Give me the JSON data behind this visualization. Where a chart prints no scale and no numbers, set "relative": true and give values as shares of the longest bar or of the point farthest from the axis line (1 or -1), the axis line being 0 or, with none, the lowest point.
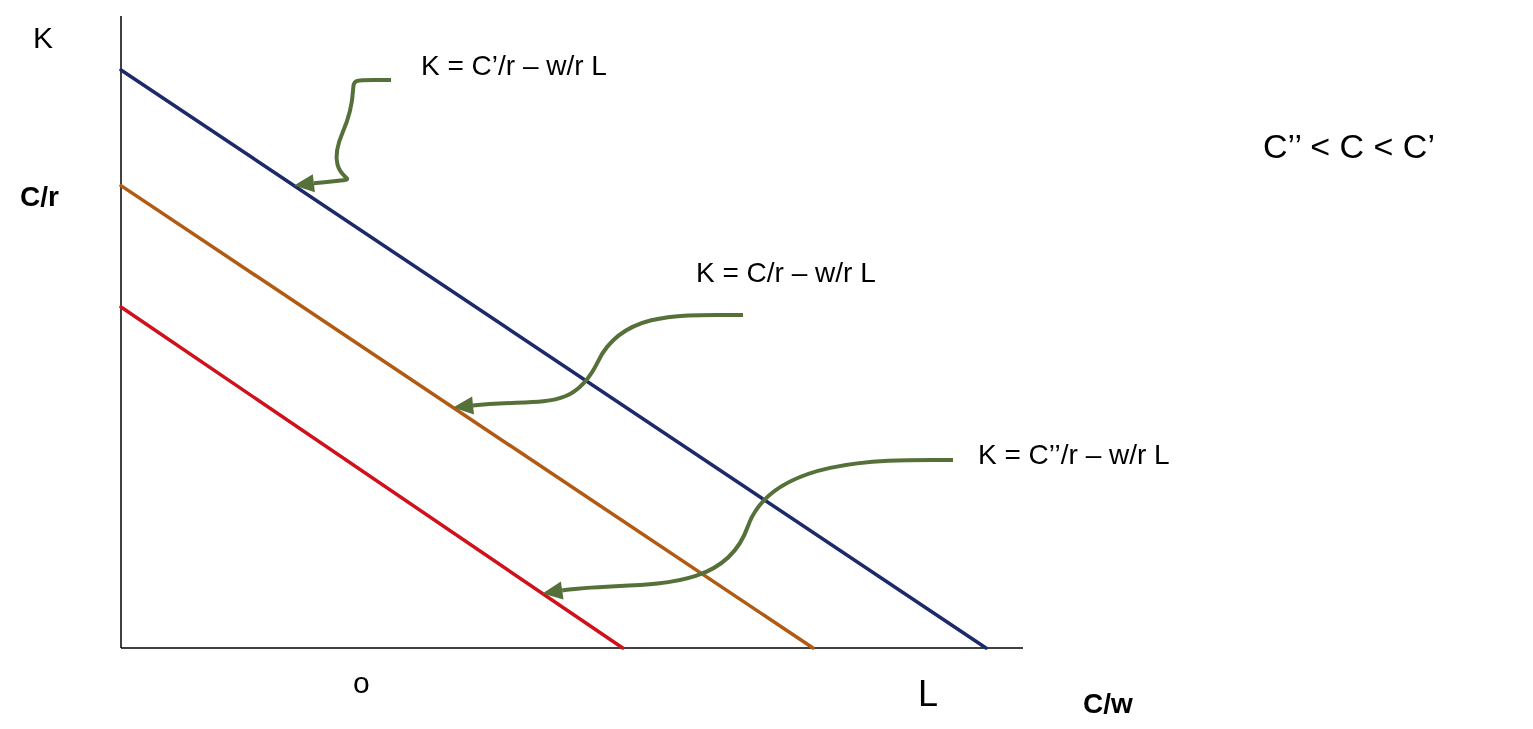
{
  "chart_data": {
    "type": "line",
    "relative": true,
    "xlabel": "L",
    "ylabel": "K",
    "categories": [
      null,
      null,
      null,
      null,
      null,
      null,
      null,
      null,
      null,
      null,
      null,
      null,
      null,
      null,
      null,
      null,
      null,
      null,
      null,
      null,
      null,
      null,
      null,
      null,
      null,
      null,
      null,
      null,
      null,
      null,
      null,
      null,
      null,
      null,
      null,
      null,
      null,
      null,
      null,
      null,
      null,
      null,
      null,
      null,
      null,
      null,
      null,
      null,
      null,
      null,
      null
    ],
    "series": [
      {
        "color": "#1c2a6b",
        "values": [
          1,
          null,
          null,
          null,
          null,
          null,
          null,
          null,
          null,
          null,
          null,
          null,
          null,
          null,
          null,
          null,
          null,
          null,
          null,
          null,
          null,
          null,
          null,
          null,
          null,
          null,
          null,
          null,
          null,
          null,
          null,
          null,
          null,
          null,
          null,
          null,
          null,
          null,
          null,
          null,
          null,
          null,
          null,
          null,
          null,
          null,
          null,
          null,
          null,
          null,
          0
        ]
      },
      {
        "color": "#b35a12",
        "values": [
          0.8,
          null,
          null,
          null,
          null,
          null,
          null,
          null,
          null,
          null,
          null,
          null,
          null,
          null,
          null,
          null,
          null,
          null,
          null,
          null,
          null,
          null,
          null,
          null,
          null,
          null,
          null,
          null,
          null,
          null,
          null,
          null,
          null,
          null,
          null,
          null,
          null,
          null,
          null,
          null,
          0,
          null,
          null,
          null,
          null,
          null,
          null,
          null,
          null,
          null,
          null
        ]
      },
      {
        "color": "#d0111b",
        "values": [
          0.59,
          null,
          null,
          null,
          null,
          null,
          null,
          null,
          null,
          null,
          null,
          null,
          null,
          null,
          null,
          null,
          null,
          null,
          null,
          null,
          null,
          null,
          null,
          null,
          null,
          null,
          null,
          null,
          null,
          0,
          null,
          null,
          null,
          null,
          null,
          null,
          null,
          null,
          null,
          null,
          null,
          null,
          null,
          null,
          null,
          null,
          null,
          null,
          null,
          null,
          null
        ]
      }
    ],
    "annotations": [
      "K = C’/r – w/r L",
      "K = C/r – w/r L",
      "K = C’’/r – w/r L",
      "C’’ < C < C’",
      "C/r",
      "o",
      "C/w"
    ]
  }
}
